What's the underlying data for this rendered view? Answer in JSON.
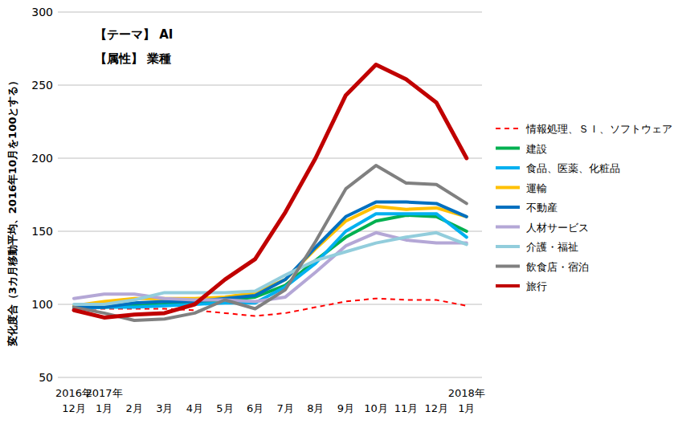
{
  "chart_data": {
    "type": "line",
    "annotations": [
      "【テーマ】 AI",
      "【属性】 業種"
    ],
    "y_label": "変化度合（3カ月移動平均、2016年10月を100とする）",
    "categories": [
      "2016年12月",
      "2017年1月",
      "2月",
      "3月",
      "4月",
      "5月",
      "6月",
      "7月",
      "8月",
      "9月",
      "10月",
      "11月",
      "12月",
      "2018年1月"
    ],
    "ylim": [
      50,
      300
    ],
    "yticks": [
      50,
      100,
      150,
      200,
      250,
      300
    ],
    "grid": true,
    "legend": "right",
    "series": [
      {
        "name": "情報処理、ＳＩ、ソフトウェア",
        "color": "#ff0000",
        "line_style": "dashed",
        "values": [
          97,
          97,
          97,
          97,
          96,
          94,
          92,
          94,
          98,
          102,
          104,
          103,
          103,
          99
        ]
      },
      {
        "name": "建設",
        "color": "#00b050",
        "line_style": "solid",
        "values": [
          98,
          98,
          99,
          100,
          101,
          103,
          105,
          113,
          130,
          146,
          157,
          161,
          160,
          150
        ]
      },
      {
        "name": "食品、医薬、化粧品",
        "color": "#00b0f0",
        "line_style": "solid",
        "values": [
          97,
          98,
          98,
          99,
          100,
          101,
          101,
          112,
          128,
          150,
          162,
          162,
          162,
          146
        ]
      },
      {
        "name": "運輸",
        "color": "#ffc000",
        "line_style": "solid",
        "values": [
          99,
          102,
          104,
          104,
          104,
          105,
          108,
          117,
          138,
          157,
          167,
          165,
          166,
          160
        ]
      },
      {
        "name": "不動産",
        "color": "#0070c0",
        "line_style": "solid",
        "values": [
          98,
          98,
          101,
          102,
          102,
          104,
          106,
          117,
          139,
          160,
          170,
          170,
          169,
          160
        ]
      },
      {
        "name": "人材サービス",
        "color": "#b4a7d6",
        "line_style": "solid",
        "values": [
          104,
          107,
          107,
          104,
          103,
          103,
          102,
          105,
          122,
          140,
          149,
          144,
          142,
          142
        ]
      },
      {
        "name": "介護・福祉",
        "color": "#92cddc",
        "line_style": "solid",
        "values": [
          100,
          100,
          103,
          108,
          108,
          108,
          109,
          120,
          130,
          136,
          142,
          146,
          149,
          141
        ]
      },
      {
        "name": "飲食店・宿泊",
        "color": "#808080",
        "line_style": "solid",
        "values": [
          98,
          94,
          89,
          90,
          94,
          103,
          97,
          110,
          143,
          179,
          195,
          183,
          182,
          169
        ]
      },
      {
        "name": "旅行",
        "color": "#c00000",
        "line_style": "solid",
        "values": [
          96,
          91,
          93,
          94,
          100,
          117,
          131,
          163,
          200,
          243,
          264,
          254,
          238,
          200
        ]
      }
    ]
  }
}
